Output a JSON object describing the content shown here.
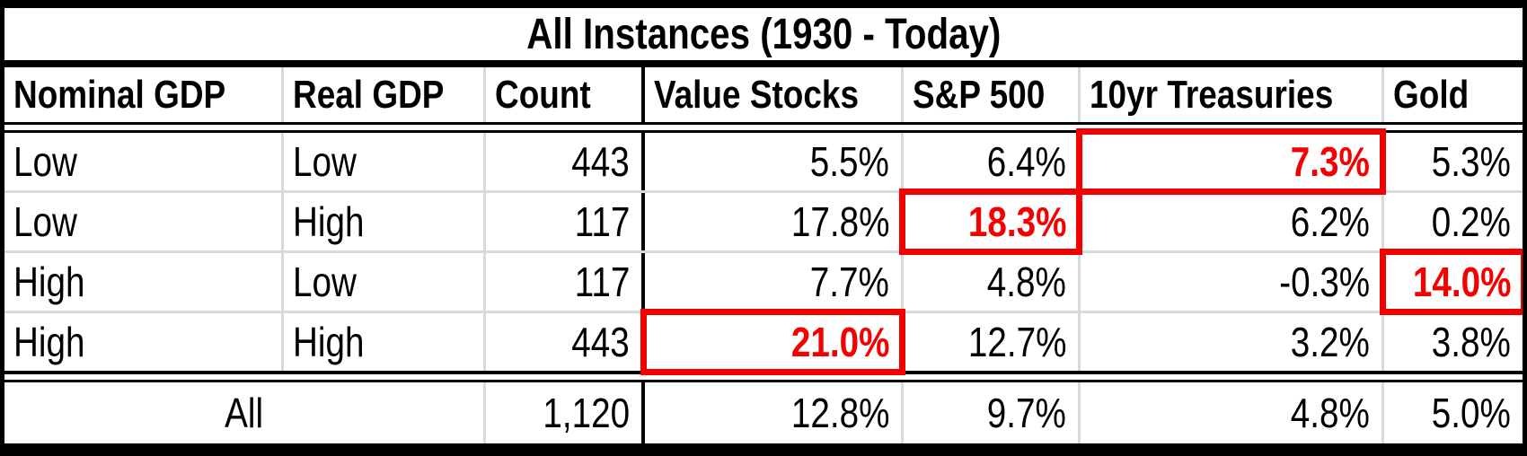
{
  "colors": {
    "highlight_red": "#f40000",
    "gridline_gray": "#d9d9d9",
    "border_black": "#000000"
  },
  "chart_data": {
    "type": "table",
    "title": "All Instances (1930 - Today)",
    "columns": [
      "Nominal GDP",
      "Real GDP",
      "Count",
      "Value Stocks",
      "S&P 500",
      "10yr Treasuries",
      "Gold"
    ],
    "rows": [
      {
        "nominal_gdp": "Low",
        "real_gdp": "Low",
        "count": "443",
        "value_stocks": "5.5%",
        "sp500": "6.4%",
        "treasuries_10yr": "7.3%",
        "gold": "5.3%",
        "highlighted_column": "10yr Treasuries"
      },
      {
        "nominal_gdp": "Low",
        "real_gdp": "High",
        "count": "117",
        "value_stocks": "17.8%",
        "sp500": "18.3%",
        "treasuries_10yr": "6.2%",
        "gold": "0.2%",
        "highlighted_column": "S&P 500"
      },
      {
        "nominal_gdp": "High",
        "real_gdp": "Low",
        "count": "117",
        "value_stocks": "7.7%",
        "sp500": "4.8%",
        "treasuries_10yr": "-0.3%",
        "gold": "14.0%",
        "highlighted_column": "Gold"
      },
      {
        "nominal_gdp": "High",
        "real_gdp": "High",
        "count": "443",
        "value_stocks": "21.0%",
        "sp500": "12.7%",
        "treasuries_10yr": "3.2%",
        "gold": "3.8%",
        "highlighted_column": "Value Stocks"
      }
    ],
    "total_row": {
      "label": "All",
      "count": "1,120",
      "value_stocks": "12.8%",
      "sp500": "9.7%",
      "treasuries_10yr": "4.8%",
      "gold": "5.0%"
    }
  }
}
